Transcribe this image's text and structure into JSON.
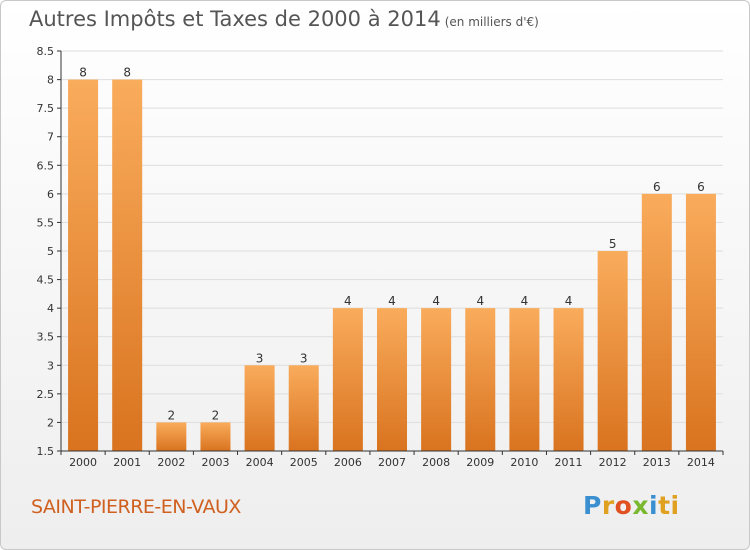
{
  "header": {
    "title": "Autres Impôts et Taxes de 2000 à 2014",
    "unit": "(en milliers d'€)"
  },
  "footer": {
    "commune": "SAINT-PIERRE-EN-VAUX",
    "logo_letters": [
      "P",
      "r",
      "o",
      "x",
      "i",
      "ti"
    ]
  },
  "colors": {
    "bar_light": "#f9ac5c",
    "bar_dark": "#d9731f",
    "axis": "#333333",
    "grid": "#dddddd",
    "commune": "#d06020"
  },
  "chart_data": {
    "type": "bar",
    "categories": [
      "2000",
      "2001",
      "2002",
      "2003",
      "2004",
      "2005",
      "2006",
      "2007",
      "2008",
      "2009",
      "2010",
      "2011",
      "2012",
      "2013",
      "2014"
    ],
    "values": [
      8,
      8,
      2,
      2,
      3,
      3,
      4,
      4,
      4,
      4,
      4,
      4,
      5,
      6,
      6
    ],
    "title": "Autres Impôts et Taxes de 2000 à 2014",
    "subtitle": "(en milliers d'€)",
    "ylim": [
      1.5,
      8.5
    ],
    "yticks": [
      "1.5",
      "2",
      "2.5",
      "3",
      "3.5",
      "4",
      "4.5",
      "5",
      "5.5",
      "6",
      "6.5",
      "7",
      "7.5",
      "8",
      "8.5"
    ],
    "grid": true,
    "data_labels": true
  }
}
